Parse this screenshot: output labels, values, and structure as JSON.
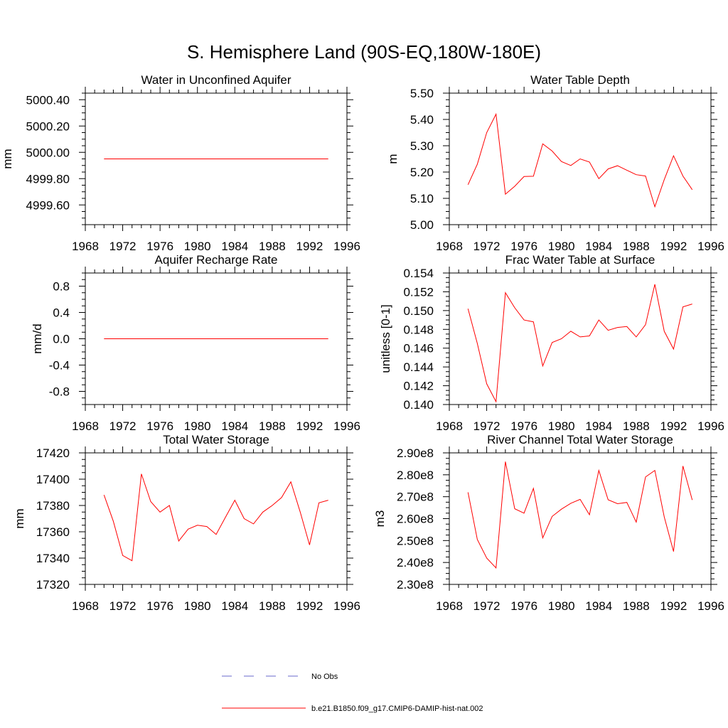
{
  "title": "S. Hemisphere Land (90S-EQ,180W-180E)",
  "legend": {
    "entries": [
      {
        "label": "No Obs",
        "color": "#6a6acd",
        "dash": true
      },
      {
        "label": "b.e21.B1850.f09_g17.CMIP6-DAMIP-hist-nat.002",
        "color": "#ff0000",
        "dash": false
      }
    ]
  },
  "chart_data": [
    {
      "type": "line",
      "title": "Water in Unconfined Aquifer",
      "ylabel": "mm",
      "xlim": [
        1968,
        1996
      ],
      "ylim": [
        4999.45,
        5000.45
      ],
      "xticks": [
        1968,
        1972,
        1976,
        1980,
        1984,
        1988,
        1992,
        1996
      ],
      "xtick_labels": [
        "1968",
        "1972",
        "1976",
        "1980",
        "1984",
        "1988",
        "1992",
        "1996"
      ],
      "yticks": [
        4999.6,
        4999.8,
        5000.0,
        5000.2,
        5000.4
      ],
      "ytick_labels": [
        "4999.60",
        "4999.80",
        "5000.00",
        "5000.20",
        "5000.40"
      ],
      "grid": false,
      "x": [
        1970,
        1971,
        1972,
        1973,
        1974,
        1975,
        1976,
        1977,
        1978,
        1979,
        1980,
        1981,
        1982,
        1983,
        1984,
        1985,
        1986,
        1987,
        1988,
        1989,
        1990,
        1991,
        1992,
        1993,
        1994
      ],
      "series": [
        {
          "color": "#ff0000",
          "values": [
            4999.95,
            4999.95,
            4999.95,
            4999.95,
            4999.95,
            4999.95,
            4999.95,
            4999.95,
            4999.95,
            4999.95,
            4999.95,
            4999.95,
            4999.95,
            4999.95,
            4999.95,
            4999.95,
            4999.95,
            4999.95,
            4999.95,
            4999.95,
            4999.95,
            4999.95,
            4999.95,
            4999.95,
            4999.95
          ]
        }
      ]
    },
    {
      "type": "line",
      "title": "Water Table Depth",
      "ylabel": "m",
      "xlim": [
        1968,
        1996
      ],
      "ylim": [
        5.0,
        5.5
      ],
      "xticks": [
        1968,
        1972,
        1976,
        1980,
        1984,
        1988,
        1992,
        1996
      ],
      "xtick_labels": [
        "1968",
        "1972",
        "1976",
        "1980",
        "1984",
        "1988",
        "1992",
        "1996"
      ],
      "yticks": [
        5.0,
        5.1,
        5.2,
        5.3,
        5.4,
        5.5
      ],
      "ytick_labels": [
        "5.00",
        "5.10",
        "5.20",
        "5.30",
        "5.40",
        "5.50"
      ],
      "grid": false,
      "x": [
        1970,
        1971,
        1972,
        1973,
        1974,
        1975,
        1976,
        1977,
        1978,
        1979,
        1980,
        1981,
        1982,
        1983,
        1984,
        1985,
        1986,
        1987,
        1988,
        1989,
        1990,
        1991,
        1992,
        1993,
        1994
      ],
      "series": [
        {
          "color": "#ff0000",
          "values": [
            5.152,
            5.23,
            5.35,
            5.42,
            5.116,
            5.146,
            5.183,
            5.184,
            5.307,
            5.28,
            5.24,
            5.225,
            5.25,
            5.238,
            5.175,
            5.212,
            5.224,
            5.207,
            5.19,
            5.185,
            5.068,
            5.171,
            5.262,
            5.185,
            5.133
          ]
        }
      ]
    },
    {
      "type": "line",
      "title": "Aquifer Recharge Rate",
      "ylabel": "mm/d",
      "xlim": [
        1968,
        1996
      ],
      "ylim": [
        -1.0,
        1.0
      ],
      "xticks": [
        1968,
        1972,
        1976,
        1980,
        1984,
        1988,
        1992,
        1996
      ],
      "xtick_labels": [
        "1968",
        "1972",
        "1976",
        "1980",
        "1984",
        "1988",
        "1992",
        "1996"
      ],
      "yticks": [
        -0.8,
        -0.4,
        0.0,
        0.4,
        0.8
      ],
      "ytick_labels": [
        "-0.8",
        "-0.4",
        "0.0",
        "0.4",
        "0.8"
      ],
      "grid": false,
      "x": [
        1970,
        1971,
        1972,
        1973,
        1974,
        1975,
        1976,
        1977,
        1978,
        1979,
        1980,
        1981,
        1982,
        1983,
        1984,
        1985,
        1986,
        1987,
        1988,
        1989,
        1990,
        1991,
        1992,
        1993,
        1994
      ],
      "series": [
        {
          "color": "#ff0000",
          "values": [
            0,
            0,
            0,
            0,
            0,
            0,
            0,
            0,
            0,
            0,
            0,
            0,
            0,
            0,
            0,
            0,
            0,
            0,
            0,
            0,
            0,
            0,
            0,
            0,
            0
          ]
        }
      ]
    },
    {
      "type": "line",
      "title": "Frac Water Table at Surface",
      "ylabel": "unitless [0-1]",
      "xlim": [
        1968,
        1996
      ],
      "ylim": [
        0.14,
        0.154
      ],
      "xticks": [
        1968,
        1972,
        1976,
        1980,
        1984,
        1988,
        1992,
        1996
      ],
      "xtick_labels": [
        "1968",
        "1972",
        "1976",
        "1980",
        "1984",
        "1988",
        "1992",
        "1996"
      ],
      "yticks": [
        0.14,
        0.142,
        0.144,
        0.146,
        0.148,
        0.15,
        0.152,
        0.154
      ],
      "ytick_labels": [
        "0.140",
        "0.142",
        "0.144",
        "0.146",
        "0.148",
        "0.150",
        "0.152",
        "0.154"
      ],
      "grid": false,
      "x": [
        1970,
        1971,
        1972,
        1973,
        1974,
        1975,
        1976,
        1977,
        1978,
        1979,
        1980,
        1981,
        1982,
        1983,
        1984,
        1985,
        1986,
        1987,
        1988,
        1989,
        1990,
        1991,
        1992,
        1993,
        1994
      ],
      "series": [
        {
          "color": "#ff0000",
          "values": [
            0.1502,
            0.1465,
            0.1422,
            0.1403,
            0.1519,
            0.1503,
            0.149,
            0.1488,
            0.1441,
            0.1466,
            0.147,
            0.1478,
            0.1472,
            0.1473,
            0.149,
            0.1479,
            0.1482,
            0.1483,
            0.1472,
            0.1485,
            0.1528,
            0.1478,
            0.1459,
            0.1504,
            0.1507
          ]
        }
      ]
    },
    {
      "type": "line",
      "title": "Total Water Storage",
      "ylabel": "mm",
      "xlim": [
        1968,
        1996
      ],
      "ylim": [
        17320,
        17420
      ],
      "xticks": [
        1968,
        1972,
        1976,
        1980,
        1984,
        1988,
        1992,
        1996
      ],
      "xtick_labels": [
        "1968",
        "1972",
        "1976",
        "1980",
        "1984",
        "1988",
        "1992",
        "1996"
      ],
      "yticks": [
        17320,
        17340,
        17360,
        17380,
        17400,
        17420
      ],
      "ytick_labels": [
        "17320",
        "17340",
        "17360",
        "17380",
        "17400",
        "17420"
      ],
      "grid": false,
      "x": [
        1970,
        1971,
        1972,
        1973,
        1974,
        1975,
        1976,
        1977,
        1978,
        1979,
        1980,
        1981,
        1982,
        1983,
        1984,
        1985,
        1986,
        1987,
        1988,
        1989,
        1990,
        1991,
        1992,
        1993,
        1994
      ],
      "series": [
        {
          "color": "#ff0000",
          "values": [
            17388,
            17368,
            17342,
            17338,
            17404,
            17383,
            17375,
            17380,
            17353,
            17362,
            17365,
            17364,
            17358,
            17371,
            17384,
            17370,
            17366,
            17375,
            17380,
            17386,
            17398,
            17375,
            17350,
            17382,
            17384
          ]
        }
      ]
    },
    {
      "type": "line",
      "title": "River Channel Total Water Storage",
      "ylabel": "m3",
      "xlim": [
        1968,
        1996
      ],
      "ylim": [
        230000000,
        290000000
      ],
      "xticks": [
        1968,
        1972,
        1976,
        1980,
        1984,
        1988,
        1992,
        1996
      ],
      "xtick_labels": [
        "1968",
        "1972",
        "1976",
        "1980",
        "1984",
        "1988",
        "1992",
        "1996"
      ],
      "yticks": [
        230000000,
        240000000,
        250000000,
        260000000,
        270000000,
        280000000,
        290000000
      ],
      "ytick_labels": [
        "2.30e8",
        "2.40e8",
        "2.50e8",
        "2.60e8",
        "2.70e8",
        "2.80e8",
        "2.90e8"
      ],
      "grid": false,
      "x": [
        1970,
        1971,
        1972,
        1973,
        1974,
        1975,
        1976,
        1977,
        1978,
        1979,
        1980,
        1981,
        1982,
        1983,
        1984,
        1985,
        1986,
        1987,
        1988,
        1989,
        1990,
        1991,
        1992,
        1993,
        1994
      ],
      "series": [
        {
          "color": "#ff0000",
          "values": [
            272000000,
            250500000,
            242000000,
            237500000,
            286000000,
            264500000,
            262500000,
            273800000,
            251200000,
            261000000,
            264300000,
            267000000,
            268800000,
            261800000,
            282000000,
            268600000,
            266800000,
            267400000,
            258400000,
            279000000,
            282000000,
            260800000,
            245000000,
            284000000,
            268500000
          ]
        }
      ]
    }
  ]
}
